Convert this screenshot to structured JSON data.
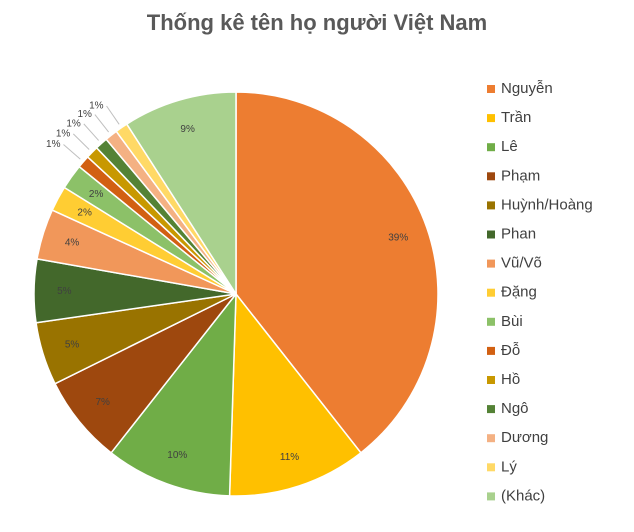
{
  "chart_data": {
    "type": "pie",
    "title": "Thống kê tên họ người Việt Nam",
    "categories": [
      "Nguyễn",
      "Trần",
      "Lê",
      "Phạm",
      "Huỳnh/Hoàng",
      "Phan",
      "Vũ/Võ",
      "Đặng",
      "Bùi",
      "Đỗ",
      "Hồ",
      "Ngô",
      "Dương",
      "Lý",
      "(Khác)"
    ],
    "values": [
      39,
      11,
      10,
      7,
      5,
      5,
      4,
      2,
      2,
      1,
      1,
      1,
      1,
      1,
      9
    ],
    "value_labels": [
      "39%",
      "11%",
      "10%",
      "7%",
      "5%",
      "5%",
      "4%",
      "2%",
      "2%",
      "1%",
      "1%",
      "1%",
      "1%",
      "1%",
      "9%"
    ],
    "colors": [
      "#ED7D31",
      "#FFC000",
      "#70AD47",
      "#9E480E",
      "#997300",
      "#43682B",
      "#F1975A",
      "#FFCD33",
      "#8CC168",
      "#D26012",
      "#C89800",
      "#548235",
      "#F4B183",
      "#FFD966",
      "#A9D18E"
    ],
    "legend": "right"
  }
}
